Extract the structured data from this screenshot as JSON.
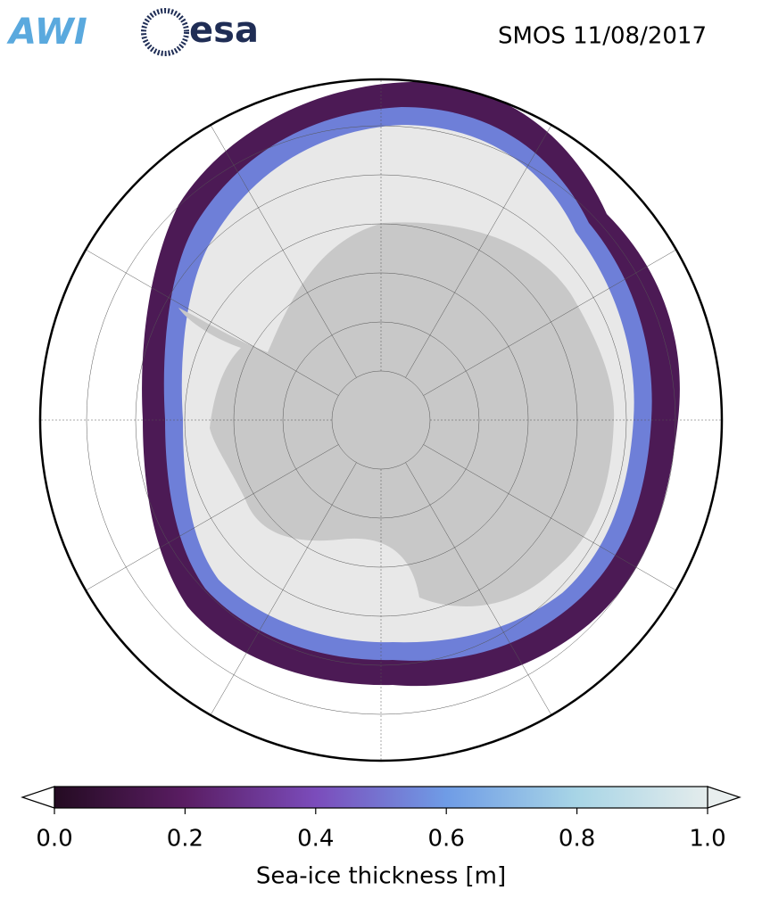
{
  "header": {
    "logo_awi": "AWI",
    "logo_esa": "esa",
    "title": "SMOS 11/08/2017"
  },
  "colorbar": {
    "label": "Sea-ice thickness [m]",
    "lim": [
      0,
      1
    ],
    "ticks": [
      {
        "value": 0,
        "label": "0.0"
      },
      {
        "value": 0.2,
        "label": "0.2"
      },
      {
        "value": 0.4,
        "label": "0.4"
      },
      {
        "value": 0.6,
        "label": "0.6"
      },
      {
        "value": 0.8,
        "label": "0.8"
      },
      {
        "value": 1,
        "label": "1.0"
      }
    ],
    "colors": [
      "#240b22",
      "#5a1d63",
      "#7b4cbb",
      "#6f9ce6",
      "#a8d5e6",
      "#e4ecec"
    ]
  }
}
